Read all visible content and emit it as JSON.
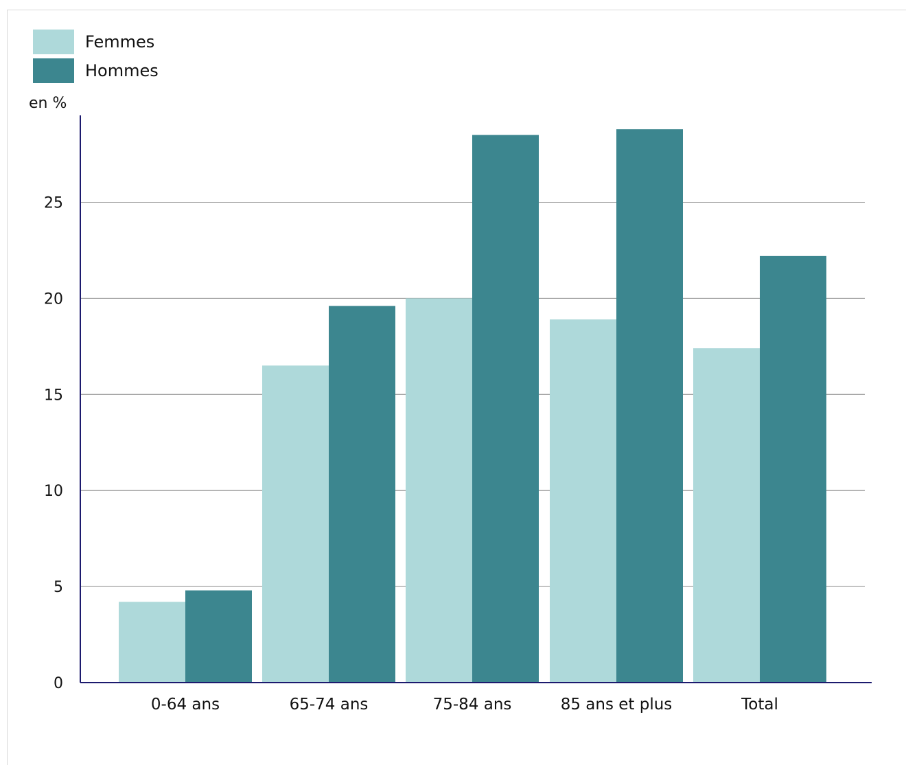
{
  "chart_data": {
    "type": "bar",
    "ylabel": "en %",
    "categories": [
      "0-64 ans",
      "65-74 ans",
      "75-84 ans",
      "85 ans et plus",
      "Total"
    ],
    "series": [
      {
        "name": "Femmes",
        "color": "#aed9da",
        "values": [
          4.2,
          16.5,
          20.0,
          18.9,
          17.4
        ]
      },
      {
        "name": "Hommes",
        "color": "#3c868f",
        "values": [
          4.8,
          19.6,
          28.5,
          28.8,
          22.2
        ]
      }
    ],
    "ylim": [
      0,
      29.5
    ],
    "yticks": [
      0,
      5,
      10,
      15,
      20,
      25
    ],
    "grid": true,
    "legend_position": "top-left"
  }
}
